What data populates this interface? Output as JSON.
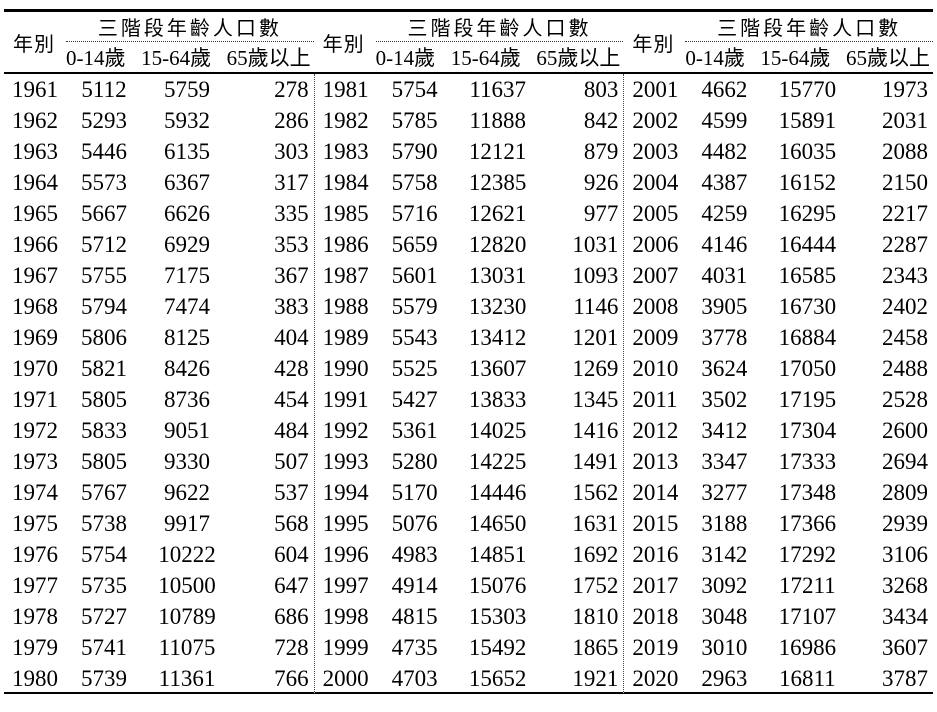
{
  "table": {
    "header": {
      "year": "年別",
      "group": "三階段年齡人口數",
      "cols": [
        "0-14歲",
        "15-64歲",
        "65歲以上"
      ]
    },
    "panels": [
      {
        "rows": [
          [
            1961,
            5112,
            5759,
            278
          ],
          [
            1962,
            5293,
            5932,
            286
          ],
          [
            1963,
            5446,
            6135,
            303
          ],
          [
            1964,
            5573,
            6367,
            317
          ],
          [
            1965,
            5667,
            6626,
            335
          ],
          [
            1966,
            5712,
            6929,
            353
          ],
          [
            1967,
            5755,
            7175,
            367
          ],
          [
            1968,
            5794,
            7474,
            383
          ],
          [
            1969,
            5806,
            8125,
            404
          ],
          [
            1970,
            5821,
            8426,
            428
          ],
          [
            1971,
            5805,
            8736,
            454
          ],
          [
            1972,
            5833,
            9051,
            484
          ],
          [
            1973,
            5805,
            9330,
            507
          ],
          [
            1974,
            5767,
            9622,
            537
          ],
          [
            1975,
            5738,
            9917,
            568
          ],
          [
            1976,
            5754,
            10222,
            604
          ],
          [
            1977,
            5735,
            10500,
            647
          ],
          [
            1978,
            5727,
            10789,
            686
          ],
          [
            1979,
            5741,
            11075,
            728
          ],
          [
            1980,
            5739,
            11361,
            766
          ]
        ]
      },
      {
        "rows": [
          [
            1981,
            5754,
            11637,
            803
          ],
          [
            1982,
            5785,
            11888,
            842
          ],
          [
            1983,
            5790,
            12121,
            879
          ],
          [
            1984,
            5758,
            12385,
            926
          ],
          [
            1985,
            5716,
            12621,
            977
          ],
          [
            1986,
            5659,
            12820,
            1031
          ],
          [
            1987,
            5601,
            13031,
            1093
          ],
          [
            1988,
            5579,
            13230,
            1146
          ],
          [
            1989,
            5543,
            13412,
            1201
          ],
          [
            1990,
            5525,
            13607,
            1269
          ],
          [
            1991,
            5427,
            13833,
            1345
          ],
          [
            1992,
            5361,
            14025,
            1416
          ],
          [
            1993,
            5280,
            14225,
            1491
          ],
          [
            1994,
            5170,
            14446,
            1562
          ],
          [
            1995,
            5076,
            14650,
            1631
          ],
          [
            1996,
            4983,
            14851,
            1692
          ],
          [
            1997,
            4914,
            15076,
            1752
          ],
          [
            1998,
            4815,
            15303,
            1810
          ],
          [
            1999,
            4735,
            15492,
            1865
          ],
          [
            2000,
            4703,
            15652,
            1921
          ]
        ]
      },
      {
        "rows": [
          [
            2001,
            4662,
            15770,
            1973
          ],
          [
            2002,
            4599,
            15891,
            2031
          ],
          [
            2003,
            4482,
            16035,
            2088
          ],
          [
            2004,
            4387,
            16152,
            2150
          ],
          [
            2005,
            4259,
            16295,
            2217
          ],
          [
            2006,
            4146,
            16444,
            2287
          ],
          [
            2007,
            4031,
            16585,
            2343
          ],
          [
            2008,
            3905,
            16730,
            2402
          ],
          [
            2009,
            3778,
            16884,
            2458
          ],
          [
            2010,
            3624,
            17050,
            2488
          ],
          [
            2011,
            3502,
            17195,
            2528
          ],
          [
            2012,
            3412,
            17304,
            2600
          ],
          [
            2013,
            3347,
            17333,
            2694
          ],
          [
            2014,
            3277,
            17348,
            2809
          ],
          [
            2015,
            3188,
            17366,
            2939
          ],
          [
            2016,
            3142,
            17292,
            3106
          ],
          [
            2017,
            3092,
            17211,
            3268
          ],
          [
            2018,
            3048,
            17107,
            3434
          ],
          [
            2019,
            3010,
            16986,
            3607
          ],
          [
            2020,
            2963,
            16811,
            3787
          ]
        ]
      }
    ]
  }
}
